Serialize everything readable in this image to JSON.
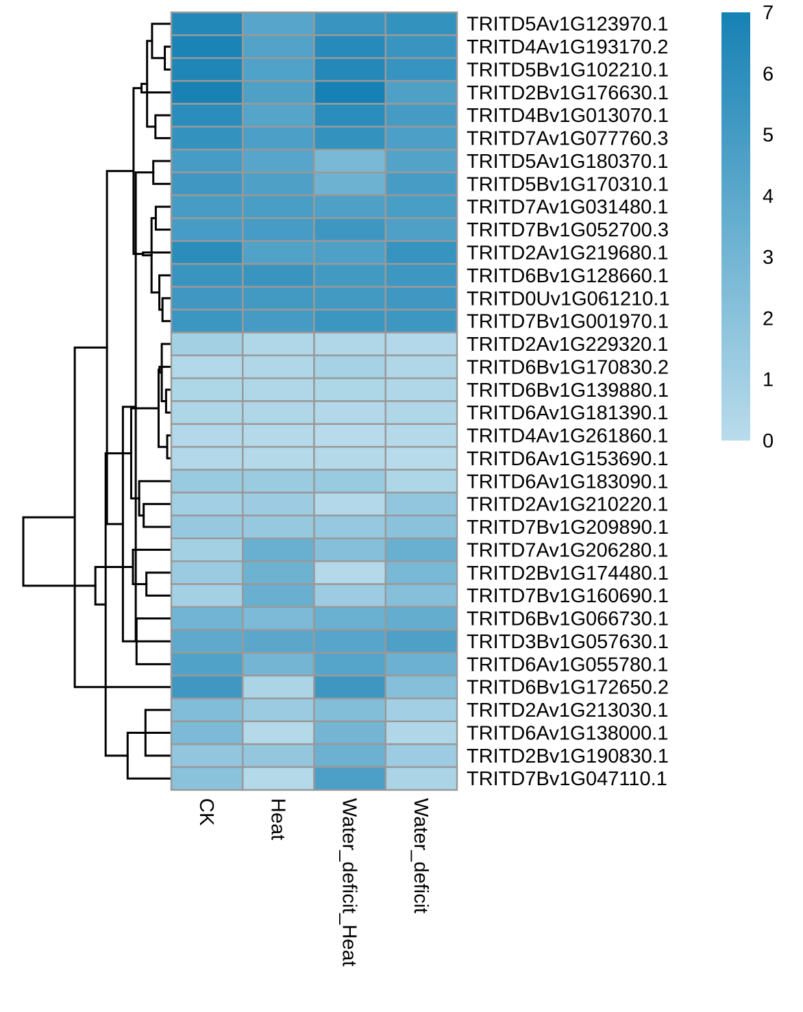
{
  "chart_data": {
    "type": "heatmap",
    "title": "",
    "columns": [
      "CK",
      "Heat",
      "Water_deficit_Heat",
      "Water_deficit"
    ],
    "rows": [
      "TRITD5Av1G123970.1",
      "TRITD4Av1G193170.2",
      "TRITD5Bv1G102210.1",
      "TRITD2Bv1G176630.1",
      "TRITD4Bv1G013070.1",
      "TRITD7Av1G077760.3",
      "TRITD5Av1G180370.1",
      "TRITD5Bv1G170310.1",
      "TRITD7Av1G031480.1",
      "TRITD7Bv1G052700.3",
      "TRITD2Av1G219680.1",
      "TRITD6Bv1G128660.1",
      "TRITD0Uv1G061210.1",
      "TRITD7Bv1G001970.1",
      "TRITD2Av1G229320.1",
      "TRITD6Bv1G170830.2",
      "TRITD6Bv1G139880.1",
      "TRITD6Av1G181390.1",
      "TRITD4Av1G261860.1",
      "TRITD6Av1G153690.1",
      "TRITD6Av1G183090.1",
      "TRITD2Av1G210220.1",
      "TRITD7Bv1G209890.1",
      "TRITD7Av1G206280.1",
      "TRITD2Bv1G174480.1",
      "TRITD7Bv1G160690.1",
      "TRITD6Bv1G066730.1",
      "TRITD3Bv1G057630.1",
      "TRITD6Av1G055780.1",
      "TRITD6Bv1G172650.2",
      "TRITD2Av1G213030.1",
      "TRITD6Av1G138000.1",
      "TRITD2Bv1G190830.1",
      "TRITD7Bv1G047110.1"
    ],
    "values": [
      [
        6.5,
        4.2,
        5.5,
        5.7
      ],
      [
        6.8,
        4.4,
        6.3,
        5.5
      ],
      [
        6.6,
        4.5,
        6.4,
        5.6
      ],
      [
        6.9,
        4.6,
        7.0,
        4.6
      ],
      [
        6.1,
        4.3,
        6.1,
        5.0
      ],
      [
        5.7,
        4.7,
        5.7,
        4.7
      ],
      [
        4.9,
        4.2,
        2.7,
        4.4
      ],
      [
        5.2,
        4.6,
        3.2,
        4.9
      ],
      [
        4.9,
        4.8,
        4.6,
        4.8
      ],
      [
        4.9,
        4.9,
        5.3,
        4.6
      ],
      [
        6.1,
        4.5,
        4.6,
        5.6
      ],
      [
        5.5,
        5.5,
        5.1,
        5.3
      ],
      [
        5.2,
        5.1,
        5.1,
        5.2
      ],
      [
        5.4,
        5.0,
        5.4,
        5.3
      ],
      [
        0.9,
        0.4,
        0.4,
        0.3
      ],
      [
        0.3,
        0.4,
        0.8,
        0.4
      ],
      [
        0.5,
        0.4,
        0.5,
        0.4
      ],
      [
        0.5,
        0.4,
        0.3,
        0.4
      ],
      [
        0.3,
        0.2,
        0.1,
        0.2
      ],
      [
        0.3,
        0.2,
        0.2,
        0.1
      ],
      [
        1.4,
        1.3,
        1.4,
        0.5
      ],
      [
        1.0,
        1.2,
        0.3,
        1.7
      ],
      [
        1.5,
        1.5,
        1.5,
        2.0
      ],
      [
        0.9,
        3.5,
        2.2,
        3.5
      ],
      [
        1.3,
        3.2,
        0.2,
        2.7
      ],
      [
        0.9,
        3.5,
        1.2,
        2.2
      ],
      [
        3.1,
        2.6,
        3.4,
        3.6
      ],
      [
        3.9,
        4.1,
        4.2,
        4.6
      ],
      [
        4.5,
        3.0,
        4.3,
        3.3
      ],
      [
        5.2,
        0.6,
        5.3,
        2.2
      ],
      [
        2.4,
        1.3,
        2.3,
        1.0
      ],
      [
        2.6,
        0.2,
        3.0,
        0.4
      ],
      [
        1.7,
        1.6,
        3.3,
        1.2
      ],
      [
        2.0,
        0.2,
        4.7,
        0.6
      ]
    ],
    "color_scale": {
      "min": 0,
      "max": 7,
      "low_color": "#b9dceb",
      "high_color": "#1681b4",
      "ticks": [
        0,
        1,
        2,
        3,
        4,
        5,
        6,
        7
      ]
    },
    "legend_placement": "top-right",
    "row_dendrogram": true,
    "cell_border_color": "#999999"
  }
}
